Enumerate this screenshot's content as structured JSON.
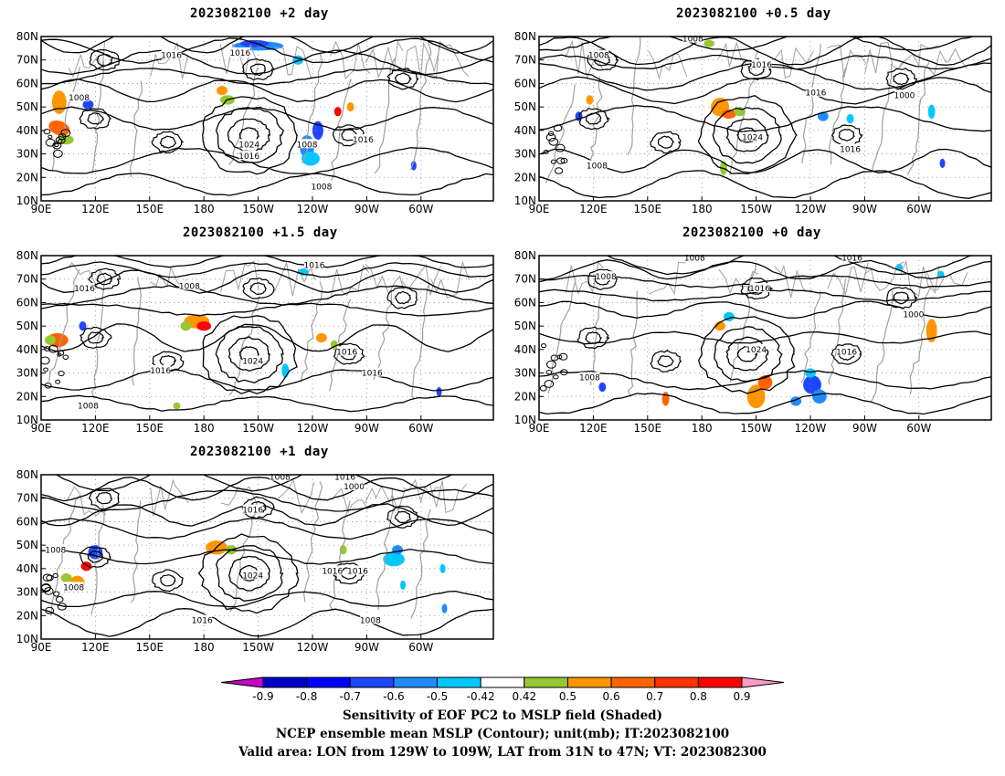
{
  "panels": [
    {
      "title": "2023082100 +2 day",
      "labels": [
        {
          "t": "1008",
          "lon": 111,
          "lat": 54
        },
        {
          "t": "1016",
          "lon": 162,
          "lat": 72
        },
        {
          "t": "1016",
          "lon": -155,
          "lat": 29
        },
        {
          "t": "1016",
          "lon": -160,
          "lat": 73
        },
        {
          "t": "1024",
          "lon": -155,
          "lat": 34
        },
        {
          "t": "1008",
          "lon": -123,
          "lat": 34
        },
        {
          "t": "1016",
          "lon": -92,
          "lat": 36
        },
        {
          "t": "1008",
          "lon": -115,
          "lat": 16
        }
      ]
    },
    {
      "title": "2023082100 +0.5 day",
      "labels": [
        {
          "t": "1008",
          "lon": 175,
          "lat": 79
        },
        {
          "t": "1008",
          "lon": 123,
          "lat": 72
        },
        {
          "t": "1016",
          "lon": -147,
          "lat": 68
        },
        {
          "t": "1016",
          "lon": -117,
          "lat": 56
        },
        {
          "t": "1024",
          "lon": -152,
          "lat": 37
        },
        {
          "t": "1008",
          "lon": 122,
          "lat": 25
        },
        {
          "t": "1016",
          "lon": -98,
          "lat": 32
        },
        {
          "t": "1000",
          "lon": -68,
          "lat": 55
        }
      ]
    },
    {
      "title": "2023082100 +1.5 day",
      "labels": [
        {
          "t": "1016",
          "lon": -119,
          "lat": 76
        },
        {
          "t": "1016",
          "lon": 114,
          "lat": 66
        },
        {
          "t": "1008",
          "lon": 172,
          "lat": 67
        },
        {
          "t": "1016",
          "lon": 156,
          "lat": 31
        },
        {
          "t": "1024",
          "lon": -153,
          "lat": 35
        },
        {
          "t": "1016",
          "lon": -101,
          "lat": 39
        },
        {
          "t": "1016",
          "lon": -87,
          "lat": 30
        },
        {
          "t": "1008",
          "lon": 116,
          "lat": 16
        }
      ]
    },
    {
      "title": "2023082100 +0 day",
      "labels": [
        {
          "t": "1008",
          "lon": 176,
          "lat": 79
        },
        {
          "t": "1016",
          "lon": -97,
          "lat": 79
        },
        {
          "t": "1008",
          "lon": 127,
          "lat": 71
        },
        {
          "t": "1016",
          "lon": -148,
          "lat": 66
        },
        {
          "t": "1000",
          "lon": -63,
          "lat": 55
        },
        {
          "t": "1024",
          "lon": -150,
          "lat": 40
        },
        {
          "t": "1016",
          "lon": -100,
          "lat": 39
        },
        {
          "t": "1008",
          "lon": 118,
          "lat": 28
        }
      ]
    },
    {
      "title": "2023082100 +1 day",
      "labels": [
        {
          "t": "1008",
          "lon": -138,
          "lat": 79
        },
        {
          "t": "1016",
          "lon": -102,
          "lat": 79
        },
        {
          "t": "1000",
          "lon": -97,
          "lat": 75
        },
        {
          "t": "1016",
          "lon": -153,
          "lat": 65
        },
        {
          "t": "1008",
          "lon": 98,
          "lat": 48
        },
        {
          "t": "1008",
          "lon": 108,
          "lat": 32
        },
        {
          "t": "1024",
          "lon": -153,
          "lat": 37
        },
        {
          "t": "1016",
          "lon": -109,
          "lat": 39
        },
        {
          "t": "1016",
          "lon": -95,
          "lat": 39
        },
        {
          "t": "1016",
          "lon": 179,
          "lat": 18
        },
        {
          "t": "1008",
          "lon": -88,
          "lat": 18
        }
      ]
    }
  ],
  "x_axis": {
    "ticks": [
      90,
      120,
      150,
      180,
      -150,
      -120,
      -90,
      -60
    ],
    "labels": [
      "90E",
      "120E",
      "150E",
      "180",
      "150W",
      "120W",
      "90W",
      "60W"
    ]
  },
  "y_axis": {
    "ticks": [
      10,
      20,
      30,
      40,
      50,
      60,
      70,
      80
    ],
    "labels": [
      "10N",
      "20N",
      "30N",
      "40N",
      "50N",
      "60N",
      "70N",
      "80N"
    ]
  },
  "colorbar": {
    "levels": [
      "-0.9",
      "-0.8",
      "-0.7",
      "-0.6",
      "-0.5",
      "-0.42",
      "0.42",
      "0.5",
      "0.6",
      "0.7",
      "0.8",
      "0.9"
    ],
    "colors": [
      "#c800c8",
      "#0000c8",
      "#0000ff",
      "#1e46ff",
      "#1e8cff",
      "#00c8ff",
      "#ffffff",
      "#96c832",
      "#ff9600",
      "#ff6400",
      "#ff3200",
      "#ff0000",
      "#ff9bc8"
    ]
  },
  "caption": {
    "line1": "Sensitivity of EOF PC2 to MSLP field (Shaded)",
    "line2": "NCEP ensemble mean MSLP (Contour); unit(mb); IT:2023082100",
    "line3": "Valid area: LON from 129W to 109W, LAT from 31N to 47N; VT: 2023082300"
  },
  "colors": {
    "contour": "#000000",
    "coast": "#a0a0a0",
    "grid": "#8c8c8c"
  }
}
